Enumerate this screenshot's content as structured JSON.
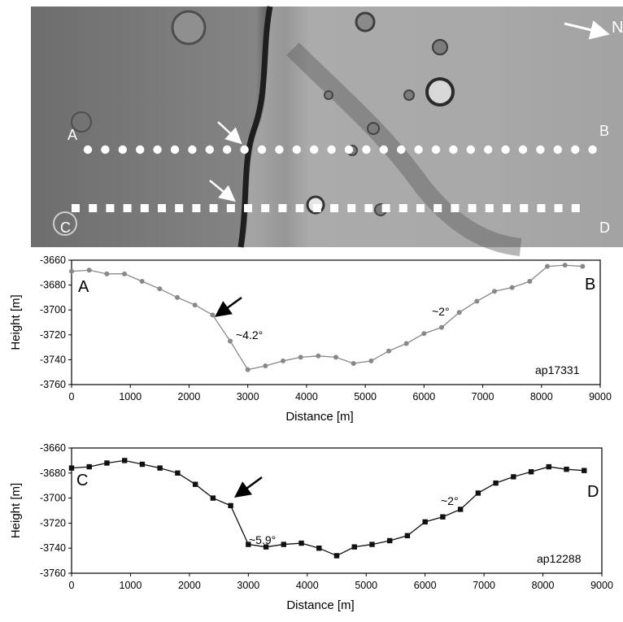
{
  "image_panel": {
    "north_label": "N",
    "profile_labels": {
      "a": "A",
      "b": "B",
      "c": "C",
      "d": "D"
    }
  },
  "chart_data": [
    {
      "type": "line",
      "marker": "circle",
      "color": "#888888",
      "x": [
        0,
        300,
        600,
        900,
        1200,
        1500,
        1800,
        2100,
        2400,
        2700,
        3000,
        3300,
        3600,
        3900,
        4200,
        4500,
        4800,
        5100,
        5400,
        5700,
        6000,
        6300,
        6600,
        6900,
        7200,
        7500,
        7800,
        8100,
        8400,
        8700
      ],
      "values": [
        -3669,
        -3668,
        -3671,
        -3671,
        -3677,
        -3683,
        -3690,
        -3696,
        -3704,
        -3725,
        -3748,
        -3745,
        -3741,
        -3738,
        -3737,
        -3738,
        -3743,
        -3741,
        -3733,
        -3727,
        -3719,
        -3714,
        -3702,
        -3693,
        -3685,
        -3682,
        -3677,
        -3665,
        -3664,
        -3665
      ],
      "xlabel": "Distance [m]",
      "ylabel": "Height [m]",
      "xlim": [
        0,
        9000
      ],
      "ylim": [
        -3760,
        -3660
      ],
      "xticks": [
        "0",
        "1000",
        "2000",
        "3000",
        "4000",
        "5000",
        "6000",
        "7000",
        "8000",
        "9000"
      ],
      "yticks": [
        "-3660",
        "-3680",
        "-3700",
        "-3720",
        "-3740",
        "-3760"
      ],
      "grid": false,
      "annotations": {
        "start_label": "A",
        "end_label": "B",
        "slope_left": "~4.2°",
        "slope_right": "~2°",
        "track_id": "ap17331"
      }
    },
    {
      "type": "line",
      "marker": "square",
      "color": "#111111",
      "x": [
        0,
        300,
        600,
        900,
        1200,
        1500,
        1800,
        2100,
        2400,
        2700,
        3000,
        3300,
        3600,
        3900,
        4200,
        4500,
        4800,
        5100,
        5400,
        5700,
        6000,
        6300,
        6600,
        6900,
        7200,
        7500,
        7800,
        8100,
        8400,
        8700
      ],
      "values": [
        -3676,
        -3675,
        -3672,
        -3670,
        -3673,
        -3676,
        -3680,
        -3689,
        -3700,
        -3706,
        -3737,
        -3739,
        -3737,
        -3736,
        -3740,
        -3746,
        -3739,
        -3737,
        -3734,
        -3730,
        -3719,
        -3715,
        -3709,
        -3696,
        -3688,
        -3683,
        -3679,
        -3675,
        -3677,
        -3678
      ],
      "xlabel": "Distance [m]",
      "ylabel": "Height [m]",
      "xlim": [
        0,
        9000
      ],
      "ylim": [
        -3760,
        -3660
      ],
      "xticks": [
        "0",
        "1000",
        "2000",
        "3000",
        "4000",
        "5000",
        "6000",
        "7000",
        "8000",
        "9000"
      ],
      "yticks": [
        "-3660",
        "-3680",
        "-3700",
        "-3720",
        "-3740",
        "-3760"
      ],
      "grid": false,
      "annotations": {
        "start_label": "C",
        "end_label": "D",
        "slope_left": "~5.9°",
        "slope_right": "~2°",
        "track_id": "ap12288"
      }
    }
  ]
}
